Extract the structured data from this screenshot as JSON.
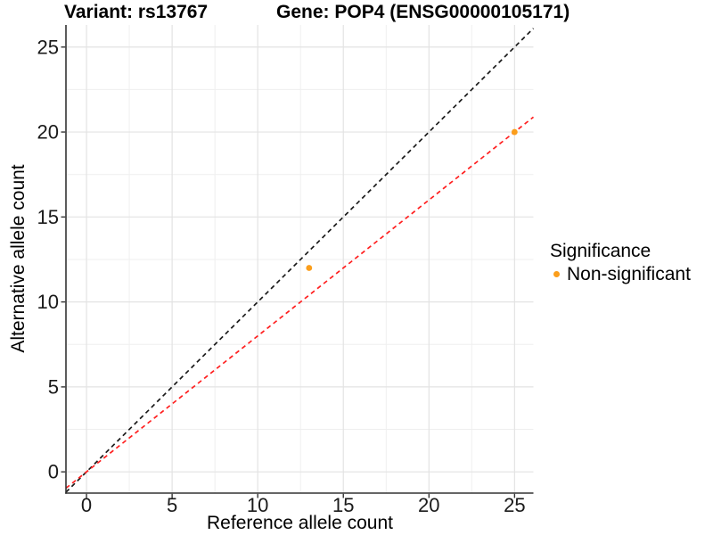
{
  "header": {
    "variant_title": "Variant: rs13767",
    "gene_title": "Gene: POP4 (ENSG00000105171)"
  },
  "legend": {
    "title": "Significance",
    "items": [
      {
        "label": "Non-significant",
        "color": "#FB9E1B"
      }
    ]
  },
  "chart_data": {
    "type": "scatter",
    "xlabel": "Reference allele count",
    "ylabel": "Alternative allele count",
    "xlim": [
      -1.2,
      26.1
    ],
    "ylim": [
      -1.25,
      26.3
    ],
    "xticks": [
      0,
      5,
      10,
      15,
      20,
      25
    ],
    "yticks": [
      0,
      5,
      10,
      15,
      20,
      25
    ],
    "xminor": [
      2.5,
      7.5,
      12.5,
      17.5,
      22.5
    ],
    "yminor": [
      2.5,
      7.5,
      12.5,
      17.5,
      22.5
    ],
    "grid": true,
    "legend_position": "right",
    "series": [
      {
        "name": "Non-significant",
        "color": "#FB9E1B",
        "points": [
          {
            "x": 13,
            "y": 12
          },
          {
            "x": 25,
            "y": 20
          }
        ]
      }
    ],
    "lines": [
      {
        "name": "identity",
        "slope": 1,
        "intercept": 0,
        "color": "#1A1A1A",
        "style": "dashed"
      },
      {
        "name": "fit",
        "slope": 0.8,
        "intercept": 0,
        "color": "#FF1F1F",
        "style": "dashed"
      }
    ]
  },
  "colors": {
    "grid_major": "#E3E3E3",
    "grid_minor": "#EFEFEF",
    "axis_line": "#333333",
    "tick_text": "#1A1A1A"
  }
}
